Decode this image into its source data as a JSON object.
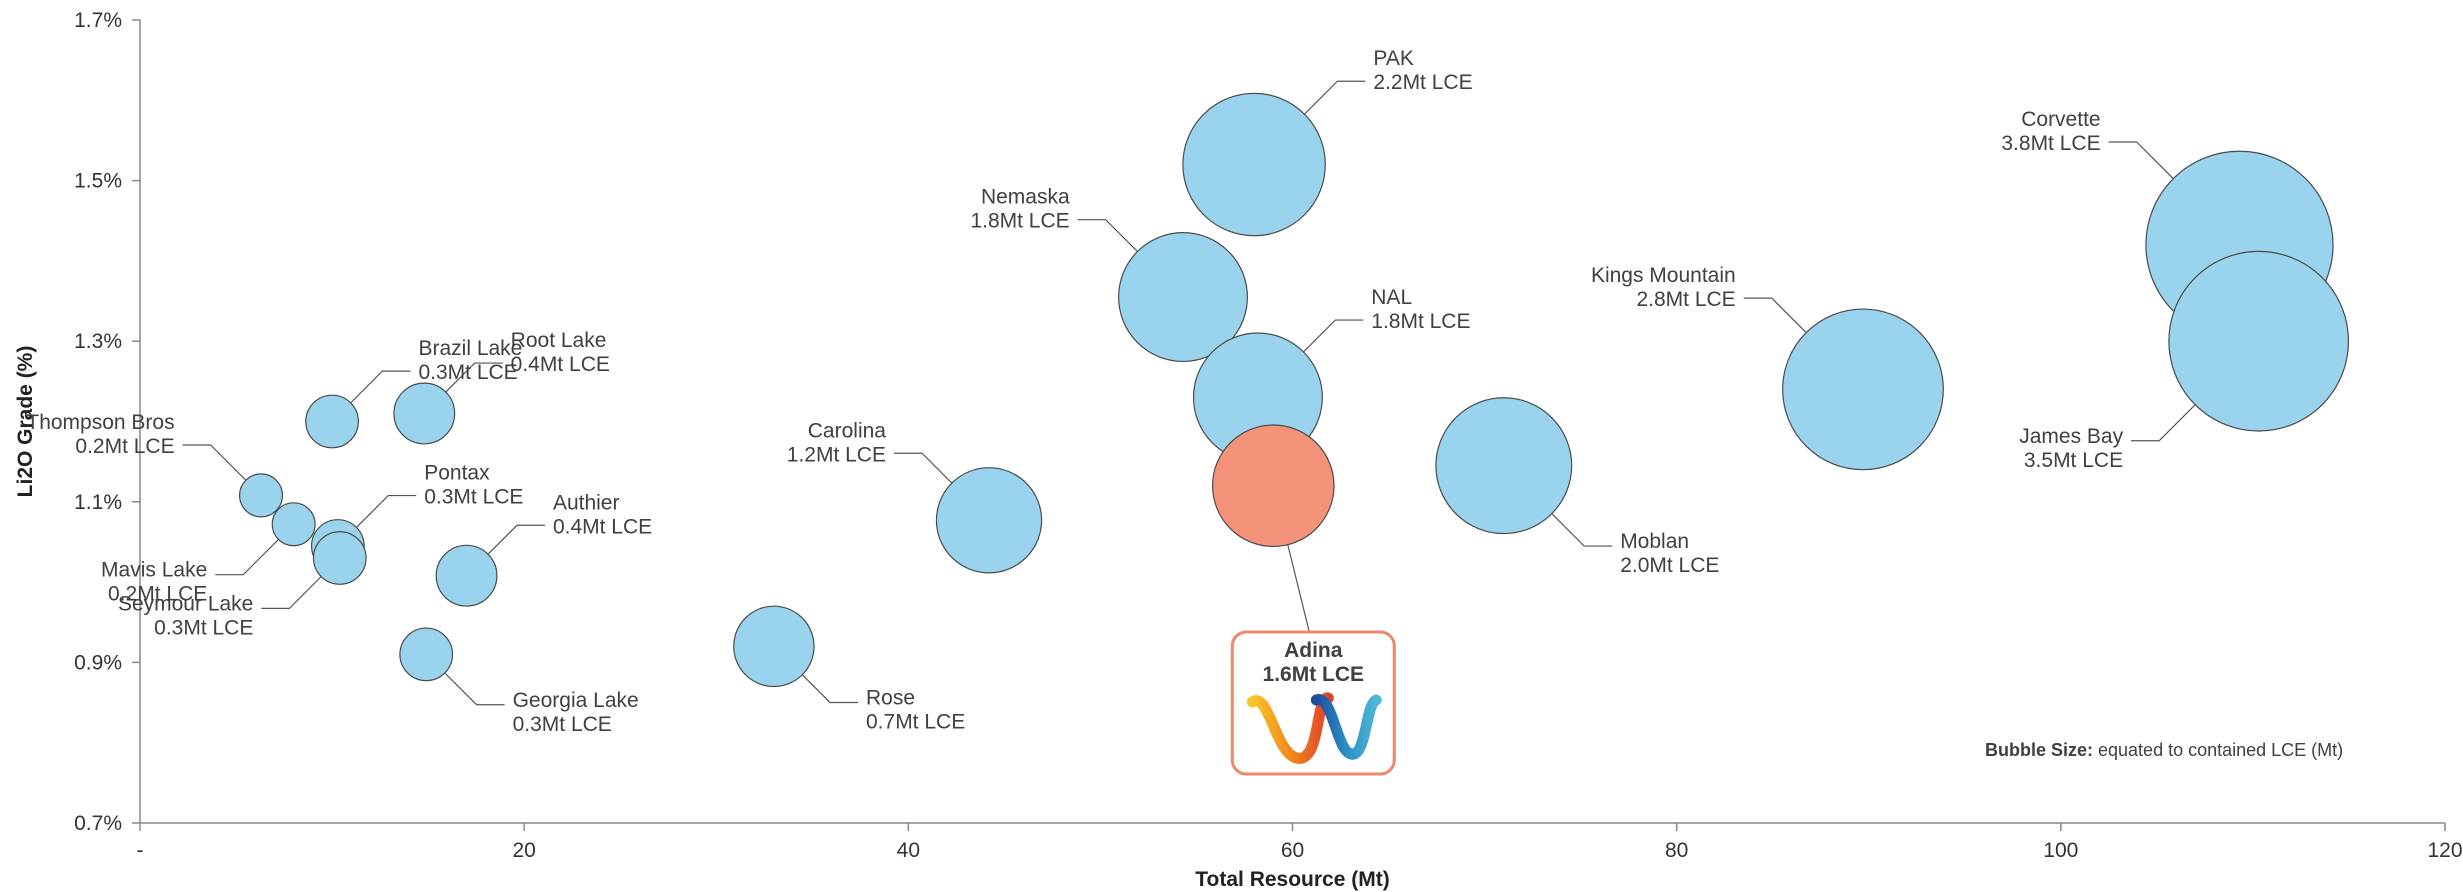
{
  "chart_data": {
    "type": "scatter",
    "subtype": "bubble",
    "xlabel": "Total Resource (Mt)",
    "ylabel": "Li2O Grade (%)",
    "xlim": [
      0,
      120
    ],
    "ylim": [
      0.7,
      1.7
    ],
    "x_ticks": [
      {
        "value": 0,
        "label": "-"
      },
      {
        "value": 20,
        "label": "20"
      },
      {
        "value": 40,
        "label": "40"
      },
      {
        "value": 60,
        "label": "60"
      },
      {
        "value": 80,
        "label": "80"
      },
      {
        "value": 100,
        "label": "100"
      },
      {
        "value": 120,
        "label": "120"
      }
    ],
    "y_ticks": [
      {
        "value": 0.7,
        "label": "0.7%"
      },
      {
        "value": 0.9,
        "label": "0.9%"
      },
      {
        "value": 1.1,
        "label": "1.1%"
      },
      {
        "value": 1.3,
        "label": "1.3%"
      },
      {
        "value": 1.5,
        "label": "1.5%"
      },
      {
        "value": 1.7,
        "label": "1.7%"
      }
    ],
    "grid": false,
    "bubble_color": "#9ad3ed",
    "highlight_color": "#f4937a",
    "highlight_border": "#f0876b",
    "points": [
      {
        "name": "James Bay",
        "lce": "3.5Mt LCE",
        "x": 110.3,
        "y": 1.3,
        "size": 3.5,
        "label_side": "left-below"
      },
      {
        "name": "Corvette",
        "lce": "3.8Mt LCE",
        "x": 109.3,
        "y": 1.42,
        "size": 3.8,
        "label_side": "left-above"
      },
      {
        "name": "Kings Mountain",
        "lce": "2.8Mt LCE",
        "x": 89.7,
        "y": 1.24,
        "size": 2.8,
        "label_side": "left-above"
      },
      {
        "name": "Moblan",
        "lce": "2.0Mt LCE",
        "x": 71.0,
        "y": 1.145,
        "size": 2.0,
        "label_side": "right-below"
      },
      {
        "name": "PAK",
        "lce": "2.2Mt LCE",
        "x": 58.0,
        "y": 1.52,
        "size": 2.2,
        "label_side": "right-above"
      },
      {
        "name": "Nemaska",
        "lce": "1.8Mt LCE",
        "x": 54.3,
        "y": 1.355,
        "size": 1.8,
        "label_side": "left-above"
      },
      {
        "name": "NAL",
        "lce": "1.8Mt LCE",
        "x": 58.2,
        "y": 1.23,
        "size": 1.8,
        "label_side": "right-above"
      },
      {
        "name": "Carolina",
        "lce": "1.2Mt LCE",
        "x": 44.2,
        "y": 1.077,
        "size": 1.2,
        "label_side": "left-above"
      },
      {
        "name": "Rose",
        "lce": "0.7Mt LCE",
        "x": 33.0,
        "y": 0.92,
        "size": 0.7,
        "label_side": "right-below"
      },
      {
        "name": "Root Lake",
        "lce": "0.4Mt LCE",
        "x": 14.8,
        "y": 1.21,
        "size": 0.4,
        "label_side": "right-above"
      },
      {
        "name": "Brazil Lake",
        "lce": "0.3Mt LCE",
        "x": 10.0,
        "y": 1.2,
        "size": 0.3,
        "label_side": "right-above"
      },
      {
        "name": "Thompson Bros",
        "lce": "0.2Mt LCE",
        "x": 6.3,
        "y": 1.108,
        "size": 0.2,
        "label_side": "left-above"
      },
      {
        "name": "Mavis Lake",
        "lce": "0.2Mt LCE",
        "x": 8.0,
        "y": 1.072,
        "size": 0.2,
        "label_side": "left-below"
      },
      {
        "name": "Pontax",
        "lce": "0.3Mt LCE",
        "x": 10.3,
        "y": 1.045,
        "size": 0.3,
        "label_side": "right-above"
      },
      {
        "name": "Seymour Lake",
        "lce": "0.3Mt LCE",
        "x": 10.4,
        "y": 1.03,
        "size": 0.3,
        "label_side": "left-below"
      },
      {
        "name": "Authier",
        "lce": "0.4Mt LCE",
        "x": 17.0,
        "y": 1.008,
        "size": 0.4,
        "label_side": "right-above"
      },
      {
        "name": "Georgia Lake",
        "lce": "0.3Mt LCE",
        "x": 14.9,
        "y": 0.91,
        "size": 0.3,
        "label_side": "right-below"
      },
      {
        "name": "Adina",
        "lce": "1.6Mt LCE",
        "x": 59.0,
        "y": 1.12,
        "size": 1.6,
        "highlight": true,
        "label_side": "below"
      }
    ],
    "note": {
      "bold": "Bubble Size:",
      "text": " equated to contained LCE (Mt)"
    }
  }
}
